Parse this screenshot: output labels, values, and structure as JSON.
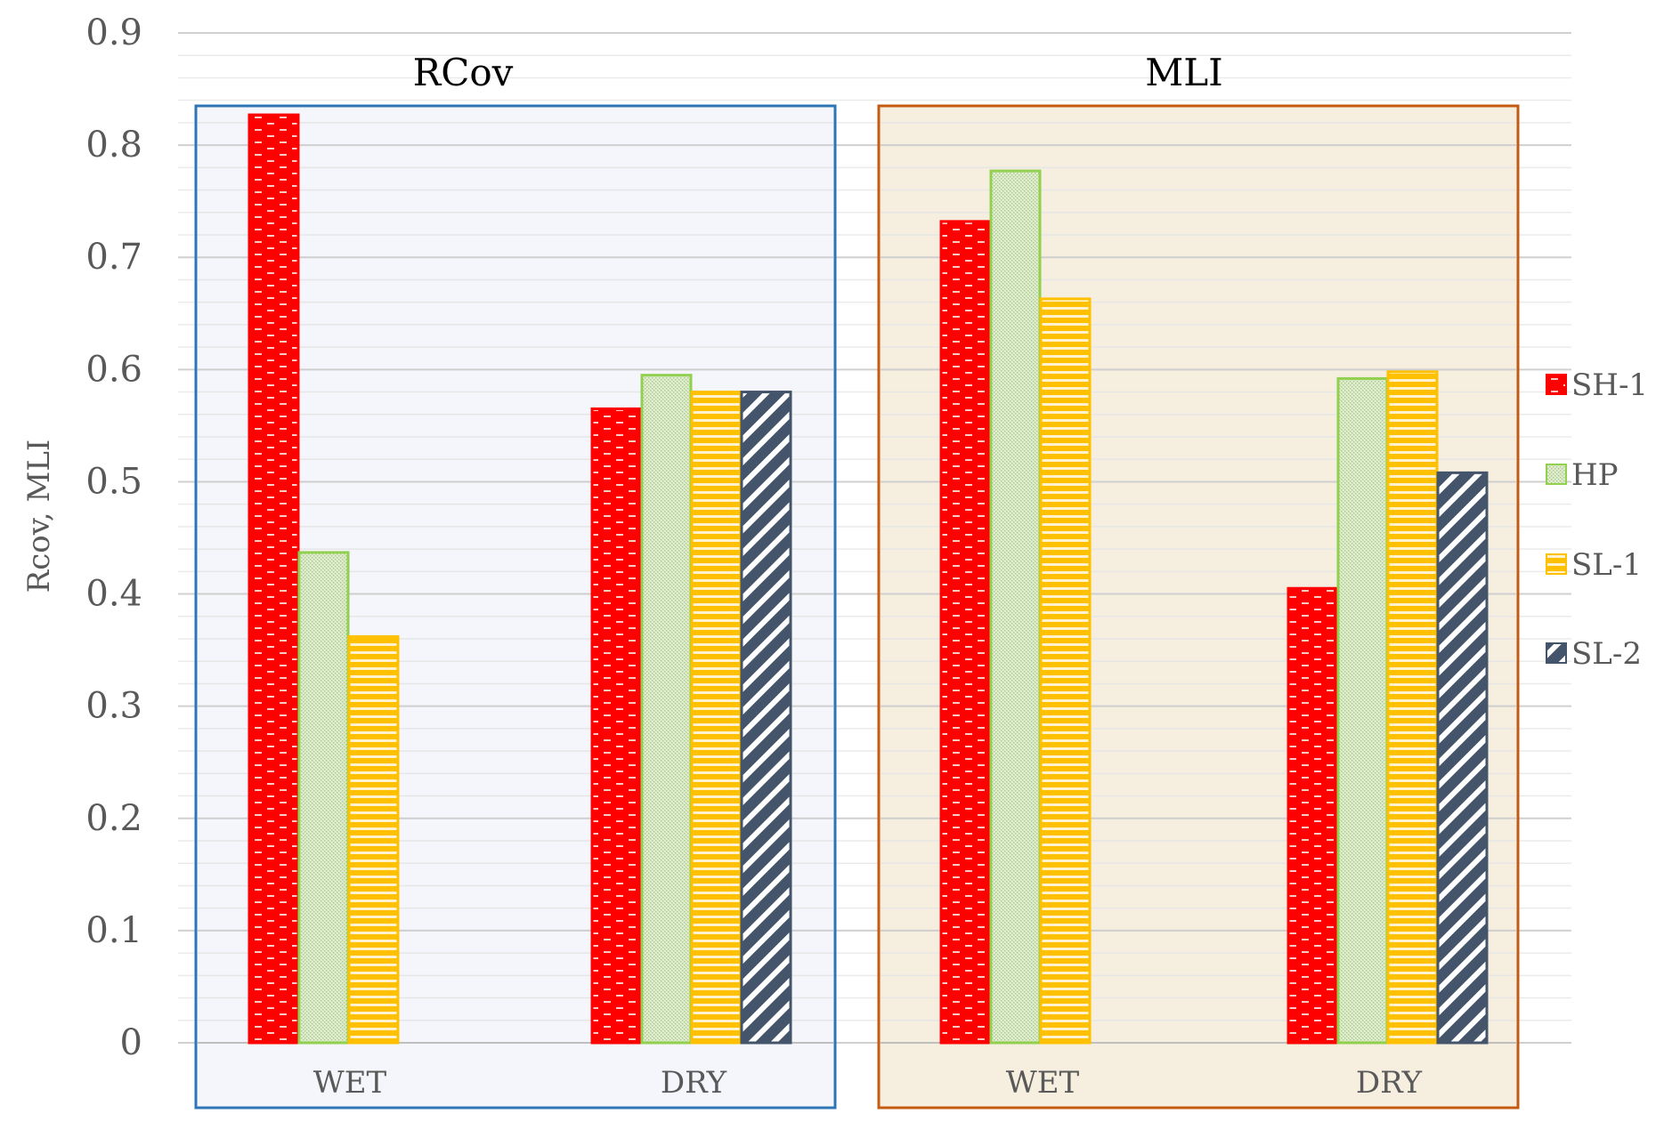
{
  "chart_data": {
    "type": "bar",
    "ylabel": "Rcov, MLI",
    "ylim": [
      0,
      0.9
    ],
    "y_ticks": [
      "0",
      "0.1",
      "0.2",
      "0.3",
      "0.4",
      "0.5",
      "0.6",
      "0.7",
      "0.8",
      "0.9"
    ],
    "grid": true,
    "legend_position": "right",
    "series": [
      {
        "name": "SH-1",
        "color": "#ff0000",
        "pattern": "dashes"
      },
      {
        "name": "HP",
        "color": "#92d050",
        "pattern": "dots"
      },
      {
        "name": "SL-1",
        "color": "#ffc000",
        "pattern": "horizontal-stripes"
      },
      {
        "name": "SL-2",
        "color": "#44546a",
        "pattern": "diagonal-stripes"
      }
    ],
    "panels": [
      {
        "title": "RCov",
        "background": "#f2f5fa",
        "border_color": "#2e75b6",
        "categories": [
          "WET",
          "DRY"
        ],
        "values": {
          "SH-1": [
            0.827,
            0.565
          ],
          "HP": [
            0.437,
            0.595
          ],
          "SL-1": [
            0.362,
            0.58
          ],
          "SL-2": [
            null,
            0.58
          ]
        }
      },
      {
        "title": "MLI",
        "background": "#f5ecdb",
        "border_color": "#c55a11",
        "categories": [
          "WET",
          "DRY"
        ],
        "values": {
          "SH-1": [
            0.732,
            0.405
          ],
          "HP": [
            0.777,
            0.592
          ],
          "SL-1": [
            0.663,
            0.598
          ],
          "SL-2": [
            null,
            0.508
          ]
        }
      }
    ]
  }
}
